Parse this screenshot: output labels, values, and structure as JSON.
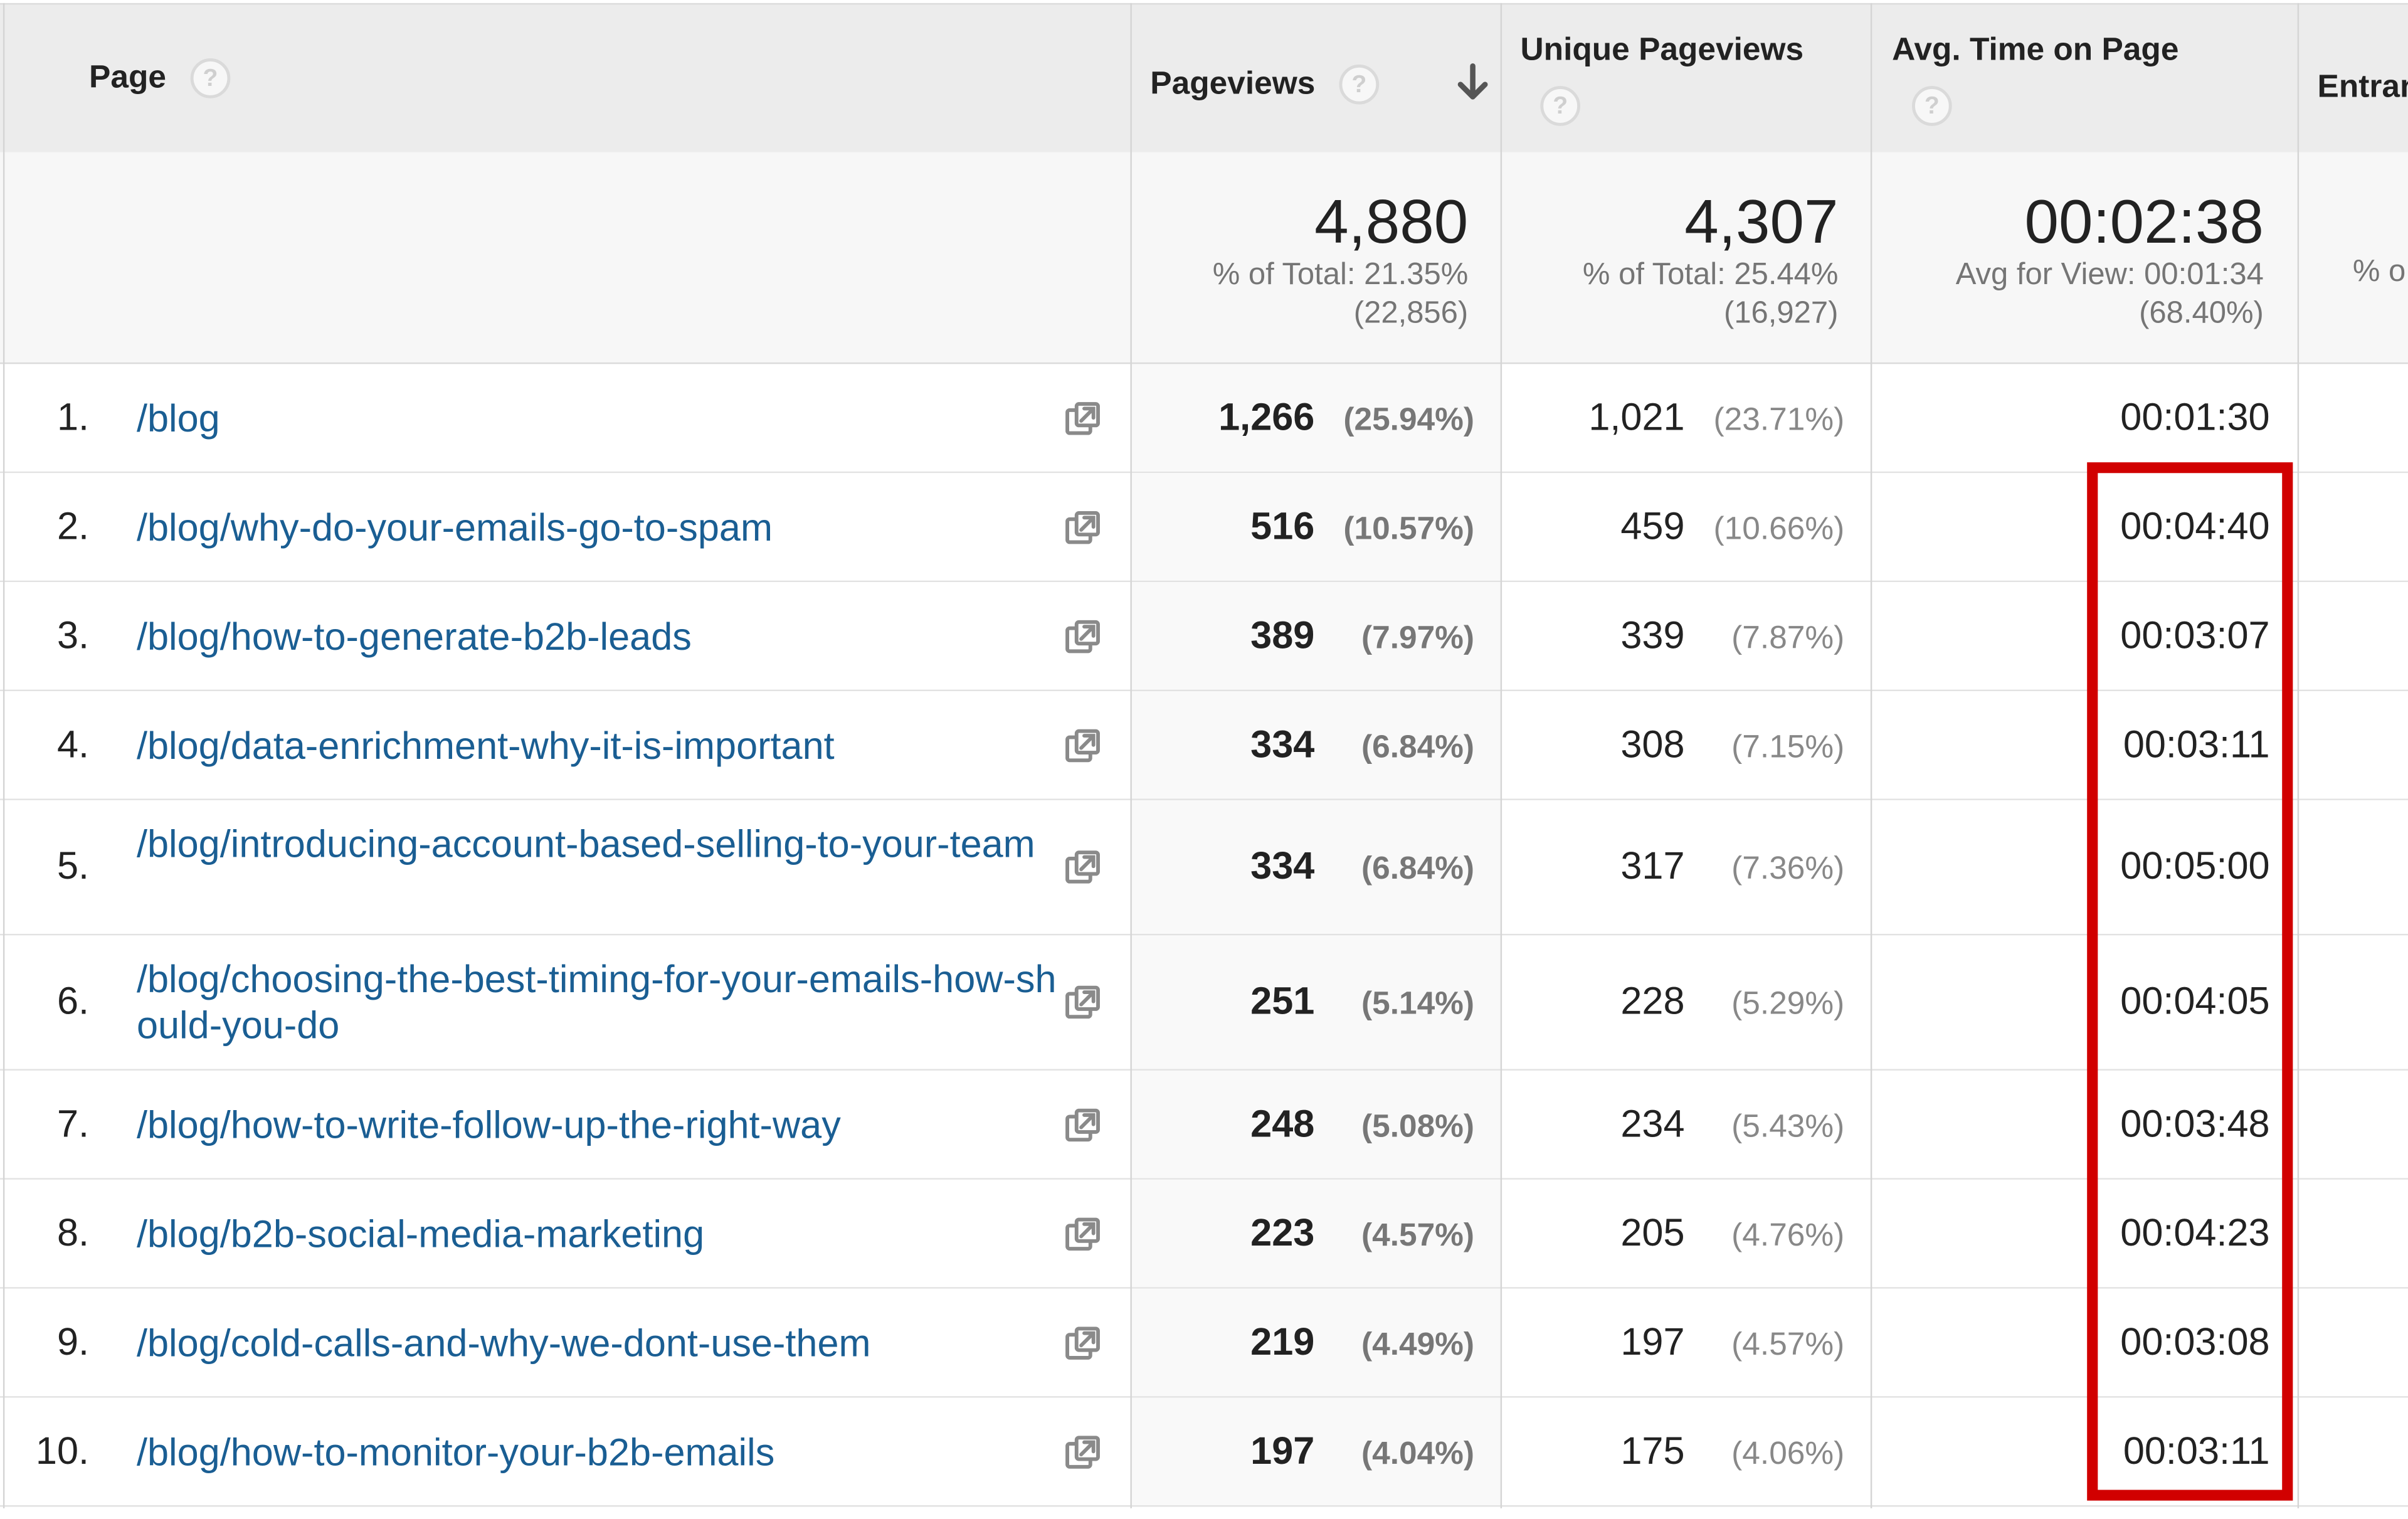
{
  "header": {
    "page_label": "Page",
    "pageviews_label": "Pageviews",
    "unique_pageviews_label": "Unique Pageviews",
    "avg_time_label": "Avg. Time on Page",
    "entrances_label": "Entran",
    "help_glyph": "?",
    "sort_glyph": "↓"
  },
  "totals": {
    "pageviews": {
      "value": "4,880",
      "line1": "% of Total: 21.35%",
      "line2": "(22,856)"
    },
    "unique_pageviews": {
      "value": "4,307",
      "line1": "% of Total: 25.44%",
      "line2": "(16,927)"
    },
    "avg_time": {
      "value": "00:02:38",
      "line1": "Avg for View: 00:01:34",
      "line2": "(68.40%)"
    },
    "entrances_partial": "% o"
  },
  "rows": [
    {
      "rank": "1.",
      "page": "/blog",
      "pageviews": "1,266",
      "pageviews_pct": "(25.94%)",
      "unique": "1,021",
      "unique_pct": "(23.71%)",
      "avg_time": "00:01:30"
    },
    {
      "rank": "2.",
      "page": "/blog/why-do-your-emails-go-to-spam",
      "pageviews": "516",
      "pageviews_pct": "(10.57%)",
      "unique": "459",
      "unique_pct": "(10.66%)",
      "avg_time": "00:04:40"
    },
    {
      "rank": "3.",
      "page": "/blog/how-to-generate-b2b-leads",
      "pageviews": "389",
      "pageviews_pct": "(7.97%)",
      "unique": "339",
      "unique_pct": "(7.87%)",
      "avg_time": "00:03:07"
    },
    {
      "rank": "4.",
      "page": "/blog/data-enrichment-why-it-is-important",
      "pageviews": "334",
      "pageviews_pct": "(6.84%)",
      "unique": "308",
      "unique_pct": "(7.15%)",
      "avg_time": "00:03:11"
    },
    {
      "rank": "5.",
      "page": "/blog/introducing-account-based-selling-to-your-team",
      "pageviews": "334",
      "pageviews_pct": "(6.84%)",
      "unique": "317",
      "unique_pct": "(7.36%)",
      "avg_time": "00:05:00"
    },
    {
      "rank": "6.",
      "page": "/blog/choosing-the-best-timing-for-your-emails-how-should-you-do",
      "pageviews": "251",
      "pageviews_pct": "(5.14%)",
      "unique": "228",
      "unique_pct": "(5.29%)",
      "avg_time": "00:04:05"
    },
    {
      "rank": "7.",
      "page": "/blog/how-to-write-follow-up-the-right-way",
      "pageviews": "248",
      "pageviews_pct": "(5.08%)",
      "unique": "234",
      "unique_pct": "(5.43%)",
      "avg_time": "00:03:48"
    },
    {
      "rank": "8.",
      "page": "/blog/b2b-social-media-marketing",
      "pageviews": "223",
      "pageviews_pct": "(4.57%)",
      "unique": "205",
      "unique_pct": "(4.76%)",
      "avg_time": "00:04:23"
    },
    {
      "rank": "9.",
      "page": "/blog/cold-calls-and-why-we-dont-use-them",
      "pageviews": "219",
      "pageviews_pct": "(4.49%)",
      "unique": "197",
      "unique_pct": "(4.57%)",
      "avg_time": "00:03:08"
    },
    {
      "rank": "10.",
      "page": "/blog/how-to-monitor-your-b2b-emails",
      "pageviews": "197",
      "pageviews_pct": "(4.04%)",
      "unique": "175",
      "unique_pct": "(4.06%)",
      "avg_time": "00:03:11"
    }
  ],
  "colors": {
    "link": "#1a5e93",
    "highlight_border": "#d10000",
    "header_bg": "#ececec"
  },
  "icons": {
    "row_action": "open-in-new-window-icon",
    "help": "help-icon",
    "sort": "sort-descending-icon"
  }
}
